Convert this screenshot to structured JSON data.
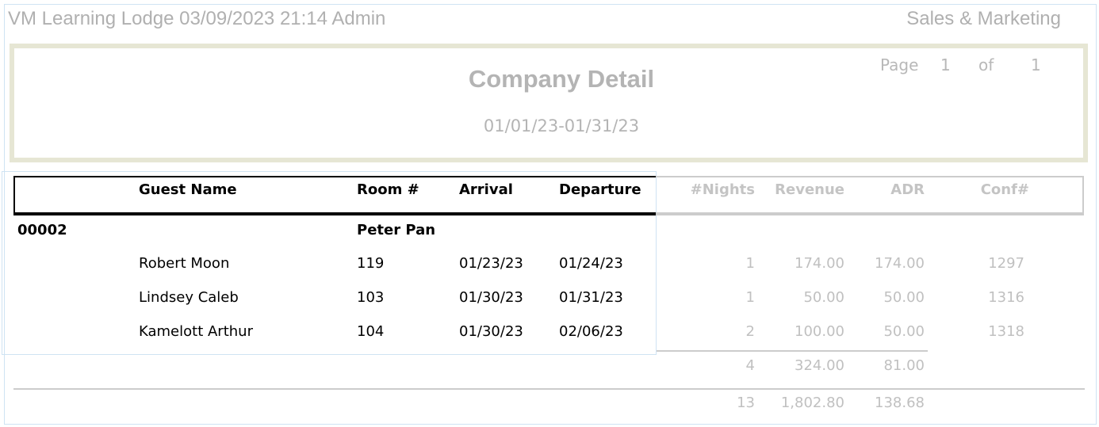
{
  "header": {
    "left": "VM Learning Lodge 03/09/2023 21:14  Admin",
    "right": "Sales & Marketing"
  },
  "report": {
    "title": "Company Detail",
    "date_range": "01/01/23-01/31/23",
    "page": {
      "label": "Page",
      "current": "1",
      "of_label": "of",
      "total": "1"
    }
  },
  "columns": [
    "Guest Name",
    "Room #",
    "Arrival",
    "Departure",
    "#Nights",
    "Revenue",
    "ADR",
    "Conf#"
  ],
  "group": {
    "id": "00002",
    "name": "Peter Pan"
  },
  "rows": [
    {
      "guest": "Robert Moon",
      "room": "119",
      "arrival": "01/23/23",
      "departure": "01/24/23",
      "nights": "1",
      "revenue": "174.00",
      "adr": "174.00",
      "conf": "1297"
    },
    {
      "guest": "Lindsey Caleb",
      "room": "103",
      "arrival": "01/30/23",
      "departure": "01/31/23",
      "nights": "1",
      "revenue": "50.00",
      "adr": "50.00",
      "conf": "1316"
    },
    {
      "guest": "Kamelott Arthur",
      "room": "104",
      "arrival": "01/30/23",
      "departure": "02/06/23",
      "nights": "2",
      "revenue": "100.00",
      "adr": "50.00",
      "conf": "1318"
    }
  ],
  "subtotal": {
    "nights": "4",
    "revenue": "324.00",
    "adr": "81.00"
  },
  "total": {
    "nights": "13",
    "revenue": "1,802.80",
    "adr": "138.68"
  }
}
